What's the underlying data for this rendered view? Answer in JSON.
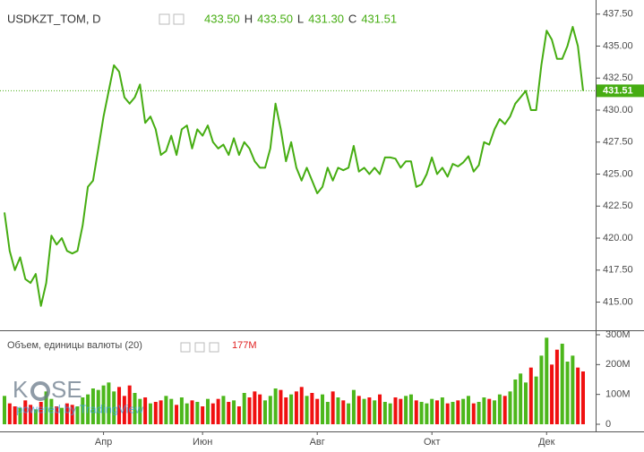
{
  "chart_data": {
    "type": "line",
    "title": "USDKZT_TOM, D",
    "ohlc": [
      "433.50",
      "H",
      "433.50",
      "L",
      "431.30",
      "C",
      "431.51"
    ],
    "color": "#46ad12",
    "categories": [
      null,
      null,
      null,
      null,
      null,
      null,
      null,
      null,
      null,
      null,
      null,
      null,
      null,
      null,
      null,
      null,
      null,
      null,
      null,
      "Апр",
      null,
      null,
      null,
      null,
      null,
      null,
      null,
      null,
      null,
      null,
      null,
      null,
      null,
      null,
      null,
      null,
      null,
      null,
      "Июн",
      null,
      null,
      null,
      null,
      null,
      null,
      null,
      null,
      null,
      null,
      null,
      null,
      null,
      null,
      null,
      null,
      null,
      null,
      null,
      null,
      null,
      "Авг",
      null,
      null,
      null,
      null,
      null,
      null,
      null,
      null,
      null,
      null,
      null,
      null,
      null,
      null,
      null,
      null,
      null,
      null,
      null,
      null,
      null,
      "Окт",
      null,
      null,
      null,
      null,
      null,
      null,
      null,
      null,
      null,
      null,
      null,
      null,
      null,
      null,
      null,
      null,
      null,
      null,
      null,
      null,
      null,
      "Дек",
      null,
      null,
      null,
      null,
      null,
      null,
      null
    ],
    "values": [
      422,
      419,
      417.5,
      418.5,
      416.8,
      416.5,
      417.2,
      414.7,
      416.5,
      420.2,
      419.5,
      420,
      419,
      418.8,
      419,
      421,
      424,
      424.5,
      427,
      429.5,
      431.5,
      433.5,
      433,
      431,
      430.5,
      431,
      432,
      429,
      429.5,
      428.5,
      426.5,
      426.8,
      428,
      426.5,
      428.5,
      428.8,
      427,
      428.5,
      428,
      428.8,
      427.5,
      427,
      427.3,
      426.5,
      427.8,
      426.5,
      427.5,
      427,
      426,
      425.5,
      425.5,
      427,
      430.5,
      428.5,
      426,
      427.5,
      425.5,
      424.5,
      425.5,
      424.5,
      423.5,
      424,
      425.5,
      424.5,
      425.5,
      425.3,
      425.5,
      427.2,
      425.2,
      425.5,
      425,
      425.5,
      425,
      426.3,
      426.3,
      426.2,
      425.5,
      426,
      426,
      424,
      424.2,
      425,
      426.3,
      425,
      425.5,
      424.8,
      425.8,
      425.6,
      425.9,
      426.4,
      425.2,
      425.7,
      427.5,
      427.3,
      428.5,
      429.3,
      428.9,
      429.5,
      430.5,
      431,
      431.5,
      430,
      430,
      433.5,
      436.2,
      435.5,
      434,
      434,
      435,
      436.5,
      435,
      431.51
    ],
    "last": {
      "value": 431.51,
      "label": "431.51"
    },
    "ylim": [
      412.8,
      438.6
    ],
    "yticks": [
      {
        "value": 415,
        "label": "415.00"
      },
      {
        "value": 417.5,
        "label": "417.50"
      },
      {
        "value": 420,
        "label": "420.00"
      },
      {
        "value": 422.5,
        "label": "422.50"
      },
      {
        "value": 425,
        "label": "425.00"
      },
      {
        "value": 427.5,
        "label": "427.50"
      },
      {
        "value": 430,
        "label": "430.00"
      },
      {
        "value": 432.5,
        "label": "432.50"
      },
      {
        "value": 435,
        "label": "435.00"
      },
      {
        "value": 437.5,
        "label": "437.50"
      }
    ],
    "grid": false,
    "volume": {
      "title": "Объем, единицы валюты (20)",
      "last_label": "177M",
      "up_color": "#4cb71b",
      "down_color": "#f01010",
      "values": [
        95,
        70,
        60,
        55,
        80,
        65,
        50,
        75,
        110,
        85,
        60,
        55,
        70,
        65,
        60,
        90,
        100,
        120,
        115,
        130,
        140,
        110,
        125,
        95,
        130,
        105,
        85,
        90,
        70,
        75,
        80,
        95,
        85,
        65,
        90,
        70,
        80,
        75,
        60,
        85,
        70,
        85,
        95,
        75,
        80,
        60,
        105,
        90,
        110,
        100,
        80,
        95,
        120,
        115,
        90,
        100,
        110,
        125,
        95,
        105,
        85,
        100,
        75,
        110,
        90,
        80,
        70,
        115,
        95,
        85,
        90,
        80,
        100,
        75,
        70,
        90,
        85,
        95,
        100,
        80,
        75,
        70,
        85,
        80,
        90,
        70,
        75,
        80,
        85,
        95,
        70,
        75,
        90,
        85,
        80,
        100,
        95,
        110,
        150,
        170,
        140,
        190,
        160,
        230,
        290,
        200,
        250,
        270,
        210,
        230,
        190,
        177
      ],
      "ylim": [
        -24,
        312
      ],
      "yticks": [
        0,
        {
          "value": 100,
          "label": "100M"
        },
        {
          "value": 200,
          "label": "200M"
        },
        {
          "value": 300,
          "label": "300M"
        }
      ]
    },
    "watermark": {
      "left": "K",
      "right": "SE",
      "text": "powered by TradingView"
    }
  }
}
